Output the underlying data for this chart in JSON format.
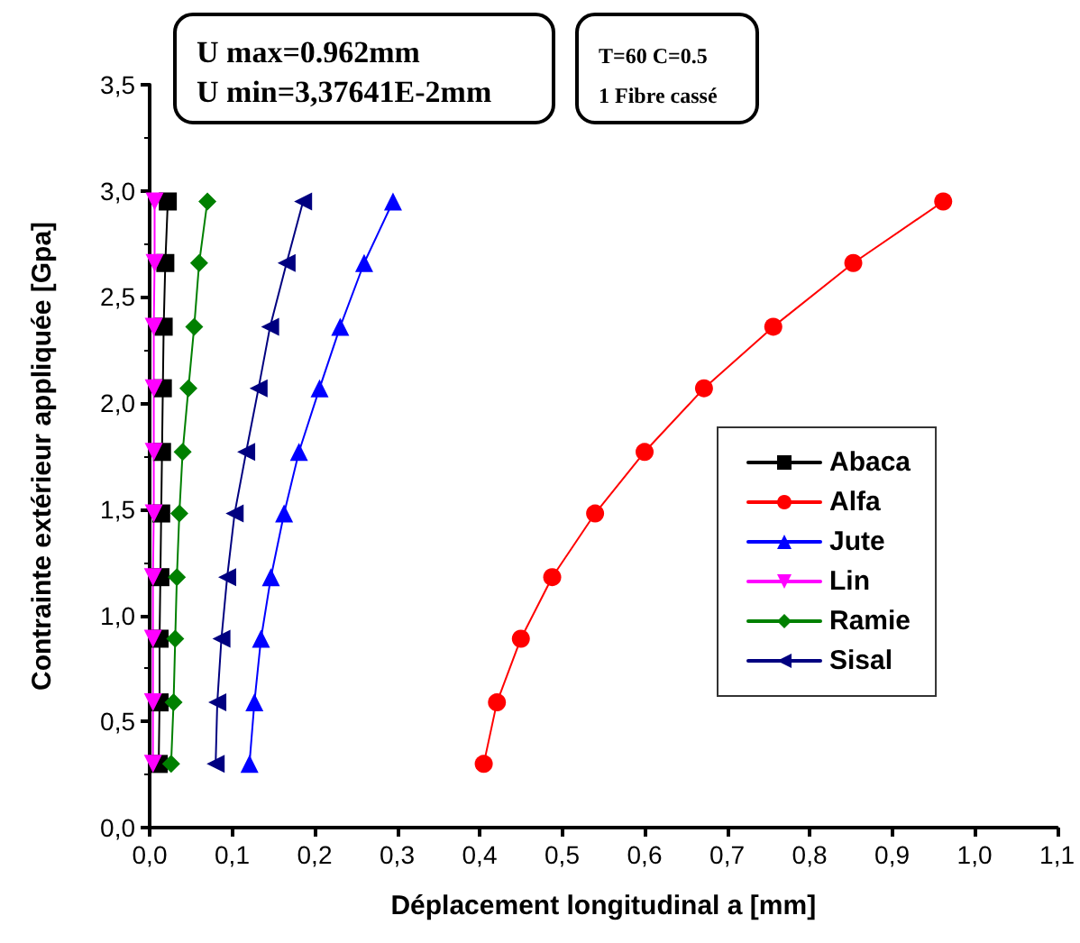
{
  "chart_data": {
    "type": "line",
    "xlabel": "Déplacement longitudinal a [mm]",
    "ylabel": "Contrainte extérieur appliquée [Gpa]",
    "annotations": [
      "U max=0.962mm\nU min=3,37641E-2mm",
      "T=60 C=0.5\n1 Fibre cassé"
    ],
    "xlim": [
      0,
      1.1
    ],
    "ylim": [
      0,
      3.5
    ],
    "xticks": [
      {
        "value": 0,
        "label": "0,0"
      },
      {
        "value": 0.1,
        "label": "0,1"
      },
      {
        "value": 0.2,
        "label": "0,2"
      },
      {
        "value": 0.3,
        "label": "0,3"
      },
      {
        "value": 0.4,
        "label": "0,4"
      },
      {
        "value": 0.5,
        "label": "0,5"
      },
      {
        "value": 0.6,
        "label": "0,6"
      },
      {
        "value": 0.7,
        "label": "0,7"
      },
      {
        "value": 0.8,
        "label": "0,8"
      },
      {
        "value": 0.9,
        "label": "0,9"
      },
      {
        "value": 1.0,
        "label": "1,0"
      },
      {
        "value": 1.1,
        "label": "1,1"
      }
    ],
    "yticks": [
      {
        "value": 0,
        "label": "0,0"
      },
      {
        "value": 0.5,
        "label": "0,5"
      },
      {
        "value": 1.0,
        "label": "1,0"
      },
      {
        "value": 1.5,
        "label": "1,5"
      },
      {
        "value": 2.0,
        "label": "2,0"
      },
      {
        "value": 2.5,
        "label": "2,5"
      },
      {
        "value": 3.0,
        "label": "3,0"
      },
      {
        "value": 3.5,
        "label": "3,5"
      }
    ],
    "grid": false,
    "legend": "right",
    "line_style": "solid",
    "series": [
      {
        "name": "Abaca",
        "color": "#000000",
        "marker": "square",
        "x": [
          0.011,
          0.012,
          0.012,
          0.013,
          0.014,
          0.015,
          0.016,
          0.017,
          0.019,
          0.022
        ],
        "values": [
          0.3,
          0.59,
          0.89,
          1.18,
          1.48,
          1.77,
          2.07,
          2.36,
          2.66,
          2.95
        ]
      },
      {
        "name": "Alfa",
        "color": "#ff0000",
        "marker": "circle",
        "x": [
          0.405,
          0.421,
          0.45,
          0.488,
          0.54,
          0.6,
          0.672,
          0.756,
          0.853,
          0.962
        ],
        "values": [
          0.3,
          0.59,
          0.89,
          1.18,
          1.48,
          1.77,
          2.07,
          2.36,
          2.66,
          2.95
        ]
      },
      {
        "name": "Jute",
        "color": "#0000ff",
        "marker": "triangle",
        "x": [
          0.121,
          0.127,
          0.135,
          0.147,
          0.163,
          0.181,
          0.206,
          0.231,
          0.26,
          0.295
        ],
        "values": [
          0.3,
          0.59,
          0.89,
          1.18,
          1.48,
          1.77,
          2.07,
          2.36,
          2.66,
          2.95
        ]
      },
      {
        "name": "Lin",
        "color": "#ff00ff",
        "marker": "triangle-down",
        "x": [
          0.004,
          0.004,
          0.004,
          0.004,
          0.005,
          0.005,
          0.005,
          0.005,
          0.006,
          0.006
        ],
        "values": [
          0.3,
          0.59,
          0.89,
          1.18,
          1.48,
          1.77,
          2.07,
          2.36,
          2.66,
          2.95
        ]
      },
      {
        "name": "Ramie",
        "color": "#008000",
        "marker": "diamond",
        "x": [
          0.026,
          0.029,
          0.031,
          0.033,
          0.036,
          0.04,
          0.047,
          0.054,
          0.06,
          0.07
        ],
        "values": [
          0.3,
          0.59,
          0.89,
          1.18,
          1.48,
          1.77,
          2.07,
          2.36,
          2.66,
          2.95
        ]
      },
      {
        "name": "Sisal",
        "color": "#000080",
        "marker": "triangle-left",
        "x": [
          0.08,
          0.082,
          0.087,
          0.094,
          0.103,
          0.117,
          0.132,
          0.146,
          0.166,
          0.186
        ],
        "values": [
          0.3,
          0.59,
          0.89,
          1.18,
          1.48,
          1.77,
          2.07,
          2.36,
          2.66,
          2.95
        ]
      }
    ]
  }
}
